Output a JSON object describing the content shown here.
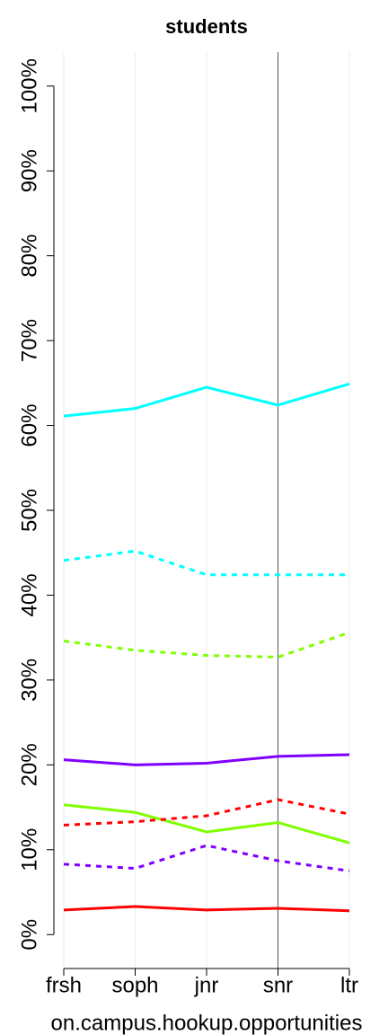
{
  "chart_data": {
    "type": "line",
    "title": "students",
    "xlabel": "on.campus.hookup.opportunities",
    "categories": [
      "frsh",
      "soph",
      "jnr",
      "snr",
      "ltr"
    ],
    "series": [
      {
        "color": "#00ffff",
        "linestyle": "solid",
        "values": [
          61.1,
          62.0,
          64.5,
          62.4,
          64.9
        ]
      },
      {
        "color": "#00ffff",
        "linestyle": "dashed",
        "values": [
          44.1,
          45.2,
          42.4,
          42.4,
          42.4
        ]
      },
      {
        "color": "#80ff00",
        "linestyle": "dashed",
        "values": [
          34.6,
          33.5,
          32.9,
          32.7,
          35.6
        ]
      },
      {
        "color": "#8000ff",
        "linestyle": "solid",
        "values": [
          20.6,
          20.0,
          20.2,
          21.0,
          21.2
        ]
      },
      {
        "color": "#80ff00",
        "linestyle": "solid",
        "values": [
          15.3,
          14.4,
          12.1,
          13.2,
          10.8
        ]
      },
      {
        "color": "#ff0000",
        "linestyle": "dashed",
        "values": [
          12.9,
          13.3,
          14.0,
          15.9,
          14.2
        ]
      },
      {
        "color": "#8000ff",
        "linestyle": "dashed",
        "values": [
          8.3,
          7.8,
          10.5,
          8.7,
          7.5
        ]
      },
      {
        "color": "#ff0000",
        "linestyle": "solid",
        "values": [
          2.9,
          3.3,
          2.9,
          3.1,
          2.8
        ]
      }
    ],
    "ylim": [
      -4,
      104
    ],
    "yticks": [
      {
        "value": 0,
        "label": "0%"
      },
      {
        "value": 10,
        "label": "10%"
      },
      {
        "value": 20,
        "label": "20%"
      },
      {
        "value": 30,
        "label": "30%"
      },
      {
        "value": 40,
        "label": "40%"
      },
      {
        "value": 50,
        "label": "50%"
      },
      {
        "value": 60,
        "label": "60%"
      },
      {
        "value": 70,
        "label": "70%"
      },
      {
        "value": 80,
        "label": "80%"
      },
      {
        "value": 90,
        "label": "90%"
      },
      {
        "value": 100,
        "label": "100%"
      }
    ],
    "grid": true,
    "highlight": 3
  }
}
